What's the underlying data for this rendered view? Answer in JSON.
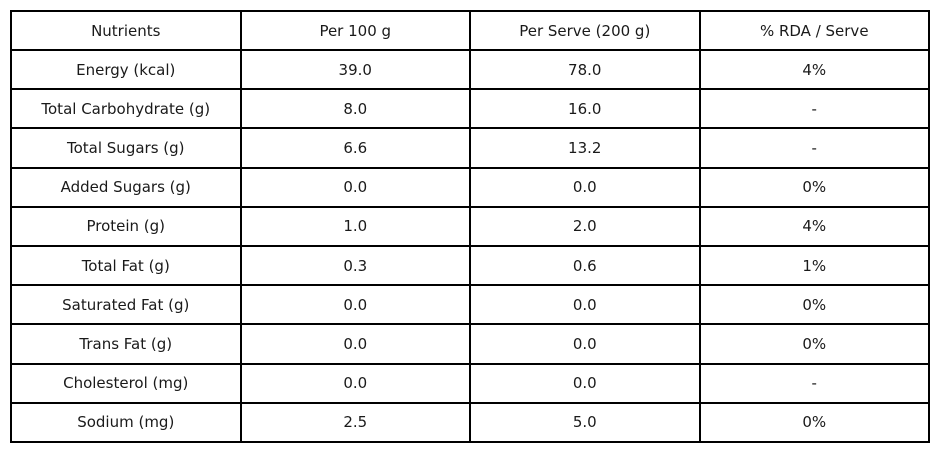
{
  "chart_data": {
    "type": "table",
    "title": "",
    "columns": [
      "Nutrients",
      "Per 100 g",
      "Per Serve (200 g)",
      "% RDA / Serve"
    ],
    "rows": [
      [
        "Energy (kcal)",
        "39.0",
        "78.0",
        "4%"
      ],
      [
        "Total Carbohydrate (g)",
        "8.0",
        "16.0",
        "-"
      ],
      [
        "Total Sugars (g)",
        "6.6",
        "13.2",
        "-"
      ],
      [
        "Added Sugars (g)",
        "0.0",
        "0.0",
        "0%"
      ],
      [
        "Protein (g)",
        "1.0",
        "2.0",
        "4%"
      ],
      [
        "Total Fat (g)",
        "0.3",
        "0.6",
        "1%"
      ],
      [
        "Saturated Fat (g)",
        "0.0",
        "0.0",
        "0%"
      ],
      [
        "Trans Fat (g)",
        "0.0",
        "0.0",
        "0%"
      ],
      [
        "Cholesterol (mg)",
        "0.0",
        "0.0",
        "-"
      ],
      [
        "Sodium (mg)",
        "2.5",
        "5.0",
        "0%"
      ]
    ],
    "colors": {
      "border": "#000000",
      "text": "#1a1a1a",
      "background": "#ffffff"
    },
    "layout": {
      "column_alignment": "center",
      "grid": true
    }
  }
}
